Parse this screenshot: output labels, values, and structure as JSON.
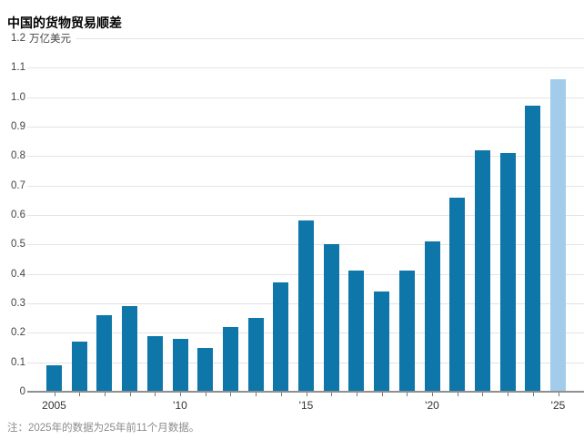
{
  "title": "中国的货物贸易顺差",
  "unit_label": "万亿美元",
  "note": "注：2025年的数据为25年前11个月数据。",
  "colors": {
    "bar": "#0e76a8",
    "bar_highlight": "#a3cceb",
    "gridline": "#e4e4e4",
    "axis_line": "#8f8f8f",
    "tick_label": "#444444",
    "note_text": "#8c8c8c"
  },
  "chart_data": {
    "type": "bar",
    "title": "中国的货物贸易顺差",
    "ylabel": "万亿美元",
    "ylim": [
      0,
      1.2
    ],
    "grid": true,
    "legend_position": "none",
    "categories": [
      2005,
      2006,
      2007,
      2008,
      2009,
      2010,
      2011,
      2012,
      2013,
      2014,
      2015,
      2016,
      2017,
      2018,
      2019,
      2020,
      2021,
      2022,
      2023,
      2024,
      2025
    ],
    "values": [
      0.09,
      0.17,
      0.26,
      0.29,
      0.19,
      0.18,
      0.15,
      0.22,
      0.25,
      0.37,
      0.58,
      0.5,
      0.41,
      0.34,
      0.41,
      0.51,
      0.66,
      0.82,
      0.81,
      0.97,
      1.06
    ],
    "highlight_index": 20,
    "y_tick_labels": [
      "0",
      "0.1",
      "0.2",
      "0.3",
      "0.4",
      "0.5",
      "0.6",
      "0.7",
      "0.8",
      "0.9",
      "1.0",
      "1.1",
      "1.2"
    ],
    "x_tick_labels": [
      {
        "index": 0,
        "label": "2005"
      },
      {
        "index": 5,
        "label": "'10"
      },
      {
        "index": 10,
        "label": "'15"
      },
      {
        "index": 15,
        "label": "'20"
      },
      {
        "index": 20,
        "label": "'25"
      }
    ]
  }
}
